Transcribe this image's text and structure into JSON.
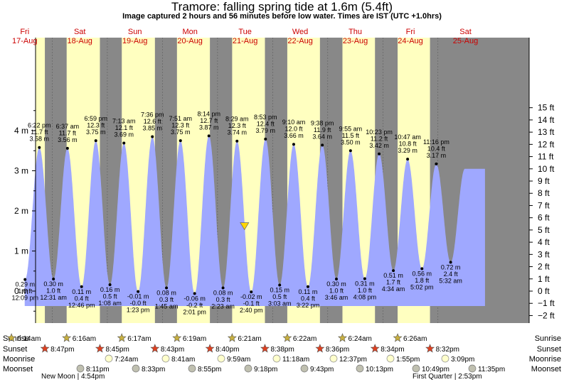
{
  "title": "Tramore: falling  spring tide at 1.6m (5.4ft)",
  "subtitle": "Image captured 2 hours and 56 minutes before low water. Times are IST (UTC +1.0hrs)",
  "colors": {
    "night": "#888888",
    "day": "#ffffc0",
    "tide": "#9fa8ff",
    "day_label": "#cc0000",
    "marker": "#ffd700"
  },
  "days": [
    {
      "weekday": "Fri",
      "date": "17-Aug"
    },
    {
      "weekday": "Sat",
      "date": "18-Aug"
    },
    {
      "weekday": "Sun",
      "date": "19-Aug"
    },
    {
      "weekday": "Mon",
      "date": "20-Aug"
    },
    {
      "weekday": "Tue",
      "date": "21-Aug"
    },
    {
      "weekday": "Wed",
      "date": "22-Aug"
    },
    {
      "weekday": "Thu",
      "date": "23-Aug"
    },
    {
      "weekday": "Fri",
      "date": "24-Aug"
    },
    {
      "weekday": "Sat",
      "date": "25-Aug"
    }
  ],
  "chart_data": {
    "type": "area",
    "title": "Tramore: falling  spring tide at 1.6m (5.4ft)",
    "x_range_days": [
      "17-Aug",
      "25-Aug"
    ],
    "y_left": {
      "unit": "m",
      "ticks": [
        "0 m",
        "1 m",
        "2 m",
        "3 m",
        "4 m"
      ],
      "range": [
        -0.7,
        4.7
      ]
    },
    "y_right": {
      "unit": "ft",
      "ticks": [
        "−2 ft",
        "−1 ft",
        "0 ft",
        "1 ft",
        "2 ft",
        "3 ft",
        "4 ft",
        "5 ft",
        "6 ft",
        "7 ft",
        "8 ft",
        "9 ft",
        "10 ft",
        "11 ft",
        "12 ft",
        "13 ft",
        "14 ft",
        "15 ft"
      ]
    },
    "current": {
      "height_m": 1.6,
      "height_ft": 5.4,
      "state": "falling"
    },
    "extremes": [
      {
        "type": "low",
        "time": "12:09 pm",
        "m": "0.29 m",
        "ft": "1.0 ft",
        "hours": 12.15,
        "value": 0.29
      },
      {
        "type": "high",
        "time": "6:22 pm",
        "m": "3.58 m",
        "ft": "11.7 ft",
        "hours": 18.37,
        "value": 3.58
      },
      {
        "type": "low",
        "time": "12:31 am",
        "m": "0.30 m",
        "ft": "1.0 ft",
        "hours": 24.52,
        "value": 0.3
      },
      {
        "type": "high",
        "time": "6:37 am",
        "m": "3.56 m",
        "ft": "11.7 ft",
        "hours": 30.62,
        "value": 3.56
      },
      {
        "type": "low",
        "time": "12:46 pm",
        "m": "0.11 m",
        "ft": "0.4 ft",
        "hours": 36.77,
        "value": 0.11
      },
      {
        "type": "high",
        "time": "6:59 pm",
        "m": "3.75 m",
        "ft": "12.3 ft",
        "hours": 42.98,
        "value": 3.75
      },
      {
        "type": "low",
        "time": "1:08 am",
        "m": "0.16 m",
        "ft": "0.5 ft",
        "hours": 49.13,
        "value": 0.16
      },
      {
        "type": "high",
        "time": "7:13 am",
        "m": "3.69 m",
        "ft": "12.1 ft",
        "hours": 55.22,
        "value": 3.69
      },
      {
        "type": "low",
        "time": "1:23 pm",
        "m": "-0.01 m",
        "ft": "-0.0 ft",
        "hours": 61.38,
        "value": -0.01
      },
      {
        "type": "high",
        "time": "7:36 pm",
        "m": "3.85 m",
        "ft": "12.6 ft",
        "hours": 67.6,
        "value": 3.85
      },
      {
        "type": "low",
        "time": "1:45 am",
        "m": "0.08 m",
        "ft": "0.3 ft",
        "hours": 73.75,
        "value": 0.08
      },
      {
        "type": "high",
        "time": "7:51 am",
        "m": "3.75 m",
        "ft": "12.3 ft",
        "hours": 79.85,
        "value": 3.75
      },
      {
        "type": "low",
        "time": "2:01 pm",
        "m": "-0.06 m",
        "ft": "-0.2 ft",
        "hours": 86.02,
        "value": -0.06
      },
      {
        "type": "high",
        "time": "8:14 pm",
        "m": "3.87 m",
        "ft": "12.7 ft",
        "hours": 92.23,
        "value": 3.87
      },
      {
        "type": "low",
        "time": "2:23 am",
        "m": "0.08 m",
        "ft": "0.3 ft",
        "hours": 98.38,
        "value": 0.08
      },
      {
        "type": "high",
        "time": "8:29 am",
        "m": "3.74 m",
        "ft": "12.3 ft",
        "hours": 104.48,
        "value": 3.74
      },
      {
        "type": "low",
        "time": "2:40 pm",
        "m": "-0.02 m",
        "ft": "-0.1 ft",
        "hours": 110.67,
        "value": -0.02
      },
      {
        "type": "high",
        "time": "8:53 pm",
        "m": "3.79 m",
        "ft": "12.4 ft",
        "hours": 116.88,
        "value": 3.79
      },
      {
        "type": "low",
        "time": "3:03 am",
        "m": "0.15 m",
        "ft": "0.5 ft",
        "hours": 123.05,
        "value": 0.15
      },
      {
        "type": "high",
        "time": "9:10 am",
        "m": "3.66 m",
        "ft": "12.0 ft",
        "hours": 129.17,
        "value": 3.66
      },
      {
        "type": "low",
        "time": "3:22 pm",
        "m": "0.11 m",
        "ft": "0.4 ft",
        "hours": 135.37,
        "value": 0.11
      },
      {
        "type": "high",
        "time": "9:38 pm",
        "m": "3.64 m",
        "ft": "11.9 ft",
        "hours": 141.63,
        "value": 3.64
      },
      {
        "type": "low",
        "time": "3:46 am",
        "m": "0.30 m",
        "ft": "1.0 ft",
        "hours": 147.77,
        "value": 0.3
      },
      {
        "type": "high",
        "time": "9:55 am",
        "m": "3.50 m",
        "ft": "11.5 ft",
        "hours": 153.92,
        "value": 3.5
      },
      {
        "type": "low",
        "time": "4:08 pm",
        "m": "0.31 m",
        "ft": "1.0 ft",
        "hours": 160.13,
        "value": 0.31
      },
      {
        "type": "high",
        "time": "10:23 pm",
        "m": "3.42 m",
        "ft": "11.2 ft",
        "hours": 166.38,
        "value": 3.42
      },
      {
        "type": "low",
        "time": "4:34 am",
        "m": "0.51 m",
        "ft": "1.7 ft",
        "hours": 172.57,
        "value": 0.51
      },
      {
        "type": "high",
        "time": "10:47 am",
        "m": "3.29 m",
        "ft": "10.8 ft",
        "hours": 178.78,
        "value": 3.29
      },
      {
        "type": "low",
        "time": "5:02 pm",
        "m": "0.56 m",
        "ft": "1.8 ft",
        "hours": 185.03,
        "value": 0.56
      },
      {
        "type": "high",
        "time": "11:16 pm",
        "m": "3.17 m",
        "ft": "10.4 ft",
        "hours": 191.27,
        "value": 3.17
      },
      {
        "type": "low",
        "time": "5:32 am",
        "m": "0.72 m",
        "ft": "2.4 ft",
        "hours": 197.53,
        "value": 0.72
      }
    ]
  },
  "astro": {
    "row_labels": [
      "Sunrise",
      "Sunset",
      "Moonrise",
      "Moonset"
    ],
    "sunrise": [
      "6:14am",
      "6:16am",
      "6:17am",
      "6:19am",
      "6:21am",
      "6:22am",
      "6:24am",
      "6:26am"
    ],
    "sunset": [
      "8:47pm",
      "8:45pm",
      "8:43pm",
      "8:40pm",
      "8:38pm",
      "8:36pm",
      "8:34pm",
      "8:32pm"
    ],
    "moonrise": [
      "7:24am",
      "8:41am",
      "9:59am",
      "11:18am",
      "12:37pm",
      "1:55pm",
      "3:09pm"
    ],
    "moonset": [
      "8:11pm",
      "8:33pm",
      "8:55pm",
      "9:18pm",
      "9:43pm",
      "10:13pm",
      "10:49pm",
      "11:35pm"
    ],
    "phases": [
      {
        "label": "New Moon",
        "time": "4:54pm"
      },
      {
        "label": "First Quarter",
        "time": "2:53pm"
      }
    ]
  }
}
